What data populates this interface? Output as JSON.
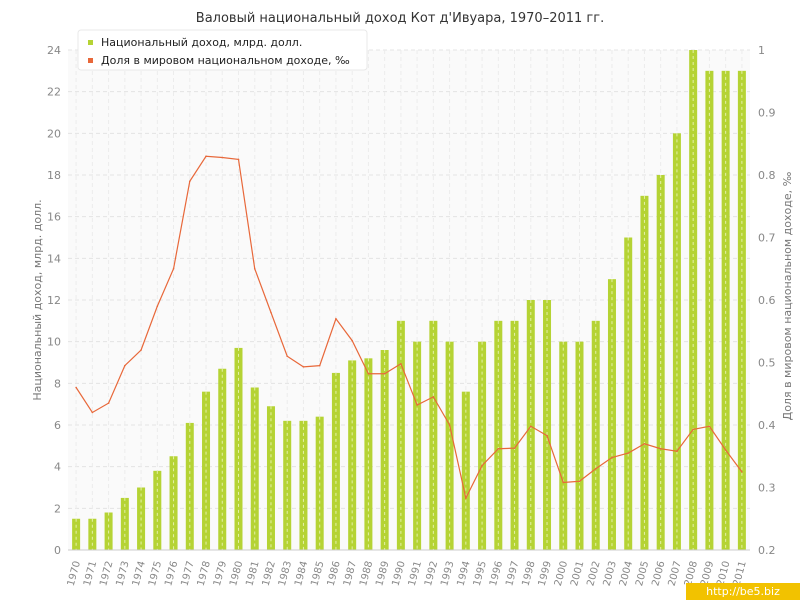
{
  "chart_data": {
    "type": "bar",
    "title": "Валовый национальный доход Кот д'Ивуара, 1970–2011 гг.",
    "ylabel": "Национальный доход, млрд. долл.",
    "y2label": "Доля в мировом национальном доходе, ‰",
    "ylim": [
      0,
      24
    ],
    "y2lim": [
      0.2,
      1
    ],
    "yticks": [
      "0",
      "2",
      "4",
      "6",
      "8",
      "10",
      "12",
      "14",
      "16",
      "18",
      "20",
      "22",
      "24"
    ],
    "y2ticks": [
      "0.2",
      "0.3",
      "0.4",
      "0.5",
      "0.6",
      "0.7",
      "0.8",
      "0.9",
      "1"
    ],
    "grid": true,
    "legend_position": "top-left",
    "categories": [
      "1970",
      "1971",
      "1972",
      "1973",
      "1974",
      "1975",
      "1976",
      "1977",
      "1978",
      "1979",
      "1980",
      "1981",
      "1982",
      "1983",
      "1984",
      "1985",
      "1986",
      "1987",
      "1988",
      "1989",
      "1990",
      "1991",
      "1992",
      "1993",
      "1994",
      "1995",
      "1996",
      "1997",
      "1998",
      "1999",
      "2000",
      "2001",
      "2002",
      "2003",
      "2004",
      "2005",
      "2006",
      "2007",
      "2008",
      "2009",
      "2010",
      "2011"
    ],
    "series": [
      {
        "name": "Национальный доход, млрд. долл.",
        "type": "bar",
        "axis": "left",
        "color": "#b5d334",
        "values": [
          1.5,
          1.5,
          1.8,
          2.5,
          3.0,
          3.8,
          4.5,
          6.1,
          7.6,
          8.7,
          9.7,
          7.8,
          6.9,
          6.2,
          6.2,
          6.4,
          8.5,
          9.1,
          9.2,
          9.6,
          11,
          10,
          11,
          10,
          7.6,
          10,
          11,
          11,
          12,
          12,
          10,
          10,
          11,
          13,
          15,
          17,
          18,
          20,
          24,
          23,
          23,
          23
        ]
      },
      {
        "name": "Доля в мировом национальном доходе, ‰",
        "type": "line",
        "axis": "right",
        "color": "#e8683a",
        "values": [
          0.46,
          0.42,
          0.435,
          0.495,
          0.52,
          0.59,
          0.65,
          0.79,
          0.83,
          0.828,
          0.825,
          0.65,
          0.58,
          0.51,
          0.493,
          0.495,
          0.57,
          0.535,
          0.482,
          0.482,
          0.498,
          0.432,
          0.445,
          0.4,
          0.283,
          0.335,
          0.362,
          0.363,
          0.398,
          0.383,
          0.308,
          0.31,
          0.33,
          0.348,
          0.355,
          0.37,
          0.362,
          0.358,
          0.393,
          0.398,
          0.36,
          0.325
        ]
      }
    ]
  },
  "watermark": "http://be5.biz"
}
